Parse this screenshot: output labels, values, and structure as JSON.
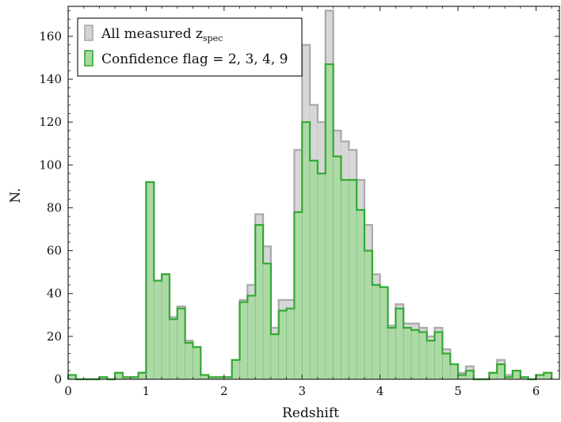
{
  "chart_data": {
    "type": "bar",
    "xlabel": "Redshift",
    "ylabel": "N.",
    "xlim": [
      0,
      6.3
    ],
    "ylim": [
      0,
      174
    ],
    "grid": false,
    "legend_position": "top-left",
    "xticks": [
      "0",
      "1",
      "2",
      "3",
      "4",
      "5",
      "6"
    ],
    "yticks": [
      "0",
      "20",
      "40",
      "60",
      "80",
      "100",
      "120",
      "140",
      "160"
    ],
    "x": [
      0.0,
      0.1,
      0.2,
      0.3,
      0.4,
      0.5,
      0.6,
      0.7,
      0.8,
      0.9,
      1.0,
      1.1,
      1.2,
      1.3,
      1.4,
      1.5,
      1.6,
      1.7,
      1.8,
      1.9,
      2.0,
      2.1,
      2.2,
      2.3,
      2.4,
      2.5,
      2.6,
      2.7,
      2.8,
      2.9,
      3.0,
      3.1,
      3.2,
      3.3,
      3.4,
      3.5,
      3.6,
      3.7,
      3.8,
      3.9,
      4.0,
      4.1,
      4.2,
      4.3,
      4.4,
      4.5,
      4.6,
      4.7,
      4.8,
      4.9,
      5.0,
      5.1,
      5.2,
      5.3,
      5.4,
      5.5,
      5.6,
      5.7,
      5.8,
      5.9,
      6.0,
      6.1
    ],
    "bin_width": 0.1,
    "series": [
      {
        "name": "All measured z_spec",
        "color": "#aaaaaa",
        "fill": "#d3d3d3",
        "values": [
          2,
          0,
          0,
          0,
          1,
          0,
          3,
          1,
          1,
          3,
          92,
          46,
          49,
          29,
          34,
          18,
          15,
          2,
          1,
          1,
          1,
          9,
          37,
          44,
          77,
          62,
          24,
          37,
          37,
          107,
          156,
          128,
          120,
          172,
          116,
          111,
          107,
          93,
          72,
          49,
          43,
          25,
          35,
          26,
          26,
          24,
          20,
          24,
          14,
          7,
          3,
          6,
          0,
          0,
          3,
          9,
          2,
          4,
          1,
          0,
          2,
          3
        ]
      },
      {
        "name": "Confidence flag = 2, 3, 4, 9",
        "color": "#33aa33",
        "fill": "#a9d9a2",
        "values": [
          2,
          0,
          0,
          0,
          1,
          0,
          3,
          1,
          1,
          3,
          92,
          46,
          49,
          28,
          33,
          17,
          15,
          2,
          1,
          1,
          1,
          9,
          36,
          39,
          72,
          54,
          21,
          32,
          33,
          78,
          120,
          102,
          96,
          147,
          104,
          93,
          93,
          79,
          60,
          44,
          43,
          24,
          33,
          24,
          23,
          22,
          18,
          22,
          12,
          7,
          2,
          4,
          0,
          0,
          3,
          7,
          1,
          4,
          1,
          0,
          2,
          3
        ]
      }
    ],
    "legend": {
      "all_prefix": "All measured z",
      "all_subscript": "spec",
      "confidence": "Confidence flag = 2, 3, 4, 9"
    }
  }
}
